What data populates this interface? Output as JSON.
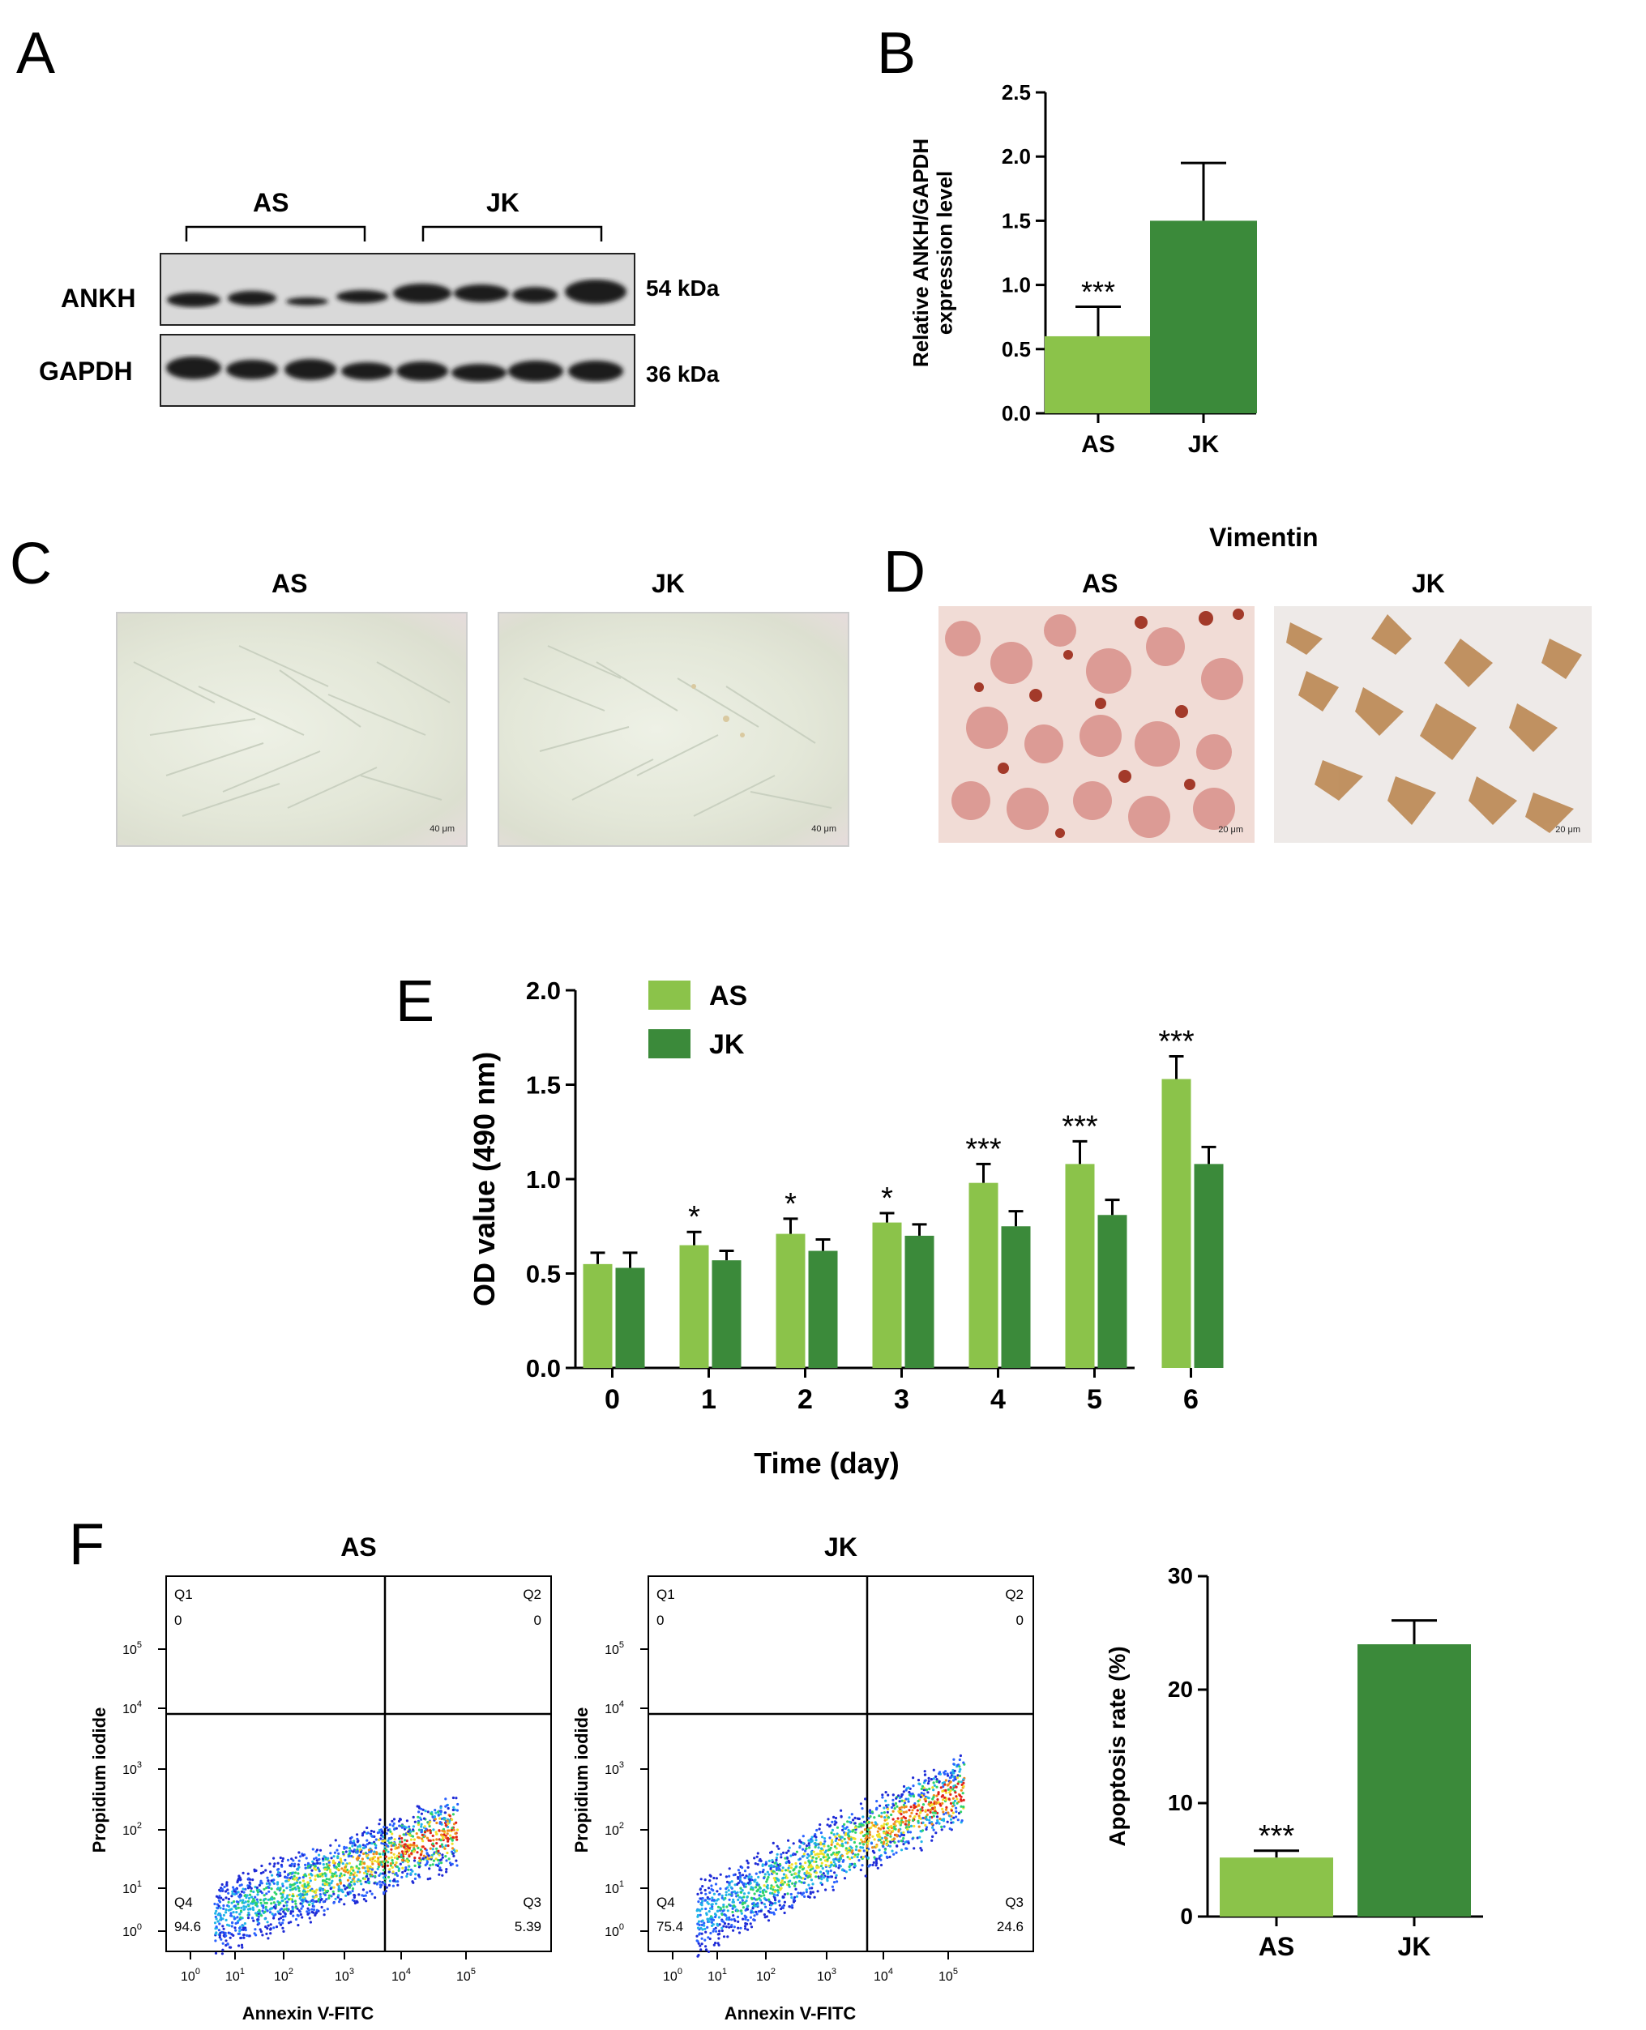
{
  "panels": {
    "A": "A",
    "B": "B",
    "C": "C",
    "D": "D",
    "E": "E",
    "F": "F"
  },
  "colors": {
    "light_green": "#8bc34a",
    "dark_green": "#3b8a3a",
    "axis": "#000000"
  },
  "panel_a": {
    "group_as": "AS",
    "group_jk": "JK",
    "rows": [
      {
        "protein": "ANKH",
        "size": "54 kDa"
      },
      {
        "protein": "GAPDH",
        "size": "36 kDa"
      }
    ]
  },
  "panel_c": {
    "label_as": "AS",
    "label_jk": "JK",
    "scale_as": "40 μm",
    "scale_jk": "40 μm"
  },
  "panel_d": {
    "title": "Vimentin",
    "label_as": "AS",
    "label_jk": "JK",
    "scale_as": "20 μm",
    "scale_jk": "20 μm"
  },
  "flow": {
    "as": {
      "title": "AS",
      "q1_label": "Q1",
      "q1": "0",
      "q2_label": "Q2",
      "q2": "0",
      "q3_label": "Q3",
      "q3": "5.39",
      "q4_label": "Q4",
      "q4": "94.6"
    },
    "jk": {
      "title": "JK",
      "q1_label": "Q1",
      "q1": "0",
      "q2_label": "Q2",
      "q2": "0",
      "q3_label": "Q3",
      "q3": "24.6",
      "q4_label": "Q4",
      "q4": "75.4"
    },
    "xlabel": "Annexin V-FITC",
    "ylabel": "Propidium iodide",
    "ticks": [
      "0",
      "1",
      "2",
      "3",
      "4",
      "5"
    ]
  },
  "chart_data": [
    {
      "id": "B",
      "type": "bar",
      "categories": [
        "AS",
        "JK"
      ],
      "values": [
        0.6,
        1.5
      ],
      "errors": [
        0.23,
        0.45
      ],
      "colors": [
        "#8bc34a",
        "#3b8a3a"
      ],
      "significance": [
        "***",
        ""
      ],
      "ylabel": "Relative ANKH/GAPDH expression level",
      "ylim": [
        0,
        2.5
      ],
      "yticks": [
        "0.0",
        "0.5",
        "1.0",
        "1.5",
        "2.0",
        "2.5"
      ]
    },
    {
      "id": "E",
      "type": "bar",
      "categories": [
        "0",
        "1",
        "2",
        "3",
        "4",
        "5",
        "6"
      ],
      "series": [
        {
          "name": "AS",
          "color": "#8bc34a",
          "values": [
            0.55,
            0.65,
            0.71,
            0.77,
            0.98,
            1.08,
            1.53
          ],
          "errors": [
            0.06,
            0.07,
            0.08,
            0.05,
            0.1,
            0.12,
            0.12
          ]
        },
        {
          "name": "JK",
          "color": "#3b8a3a",
          "values": [
            0.53,
            0.57,
            0.62,
            0.7,
            0.75,
            0.81,
            1.08
          ],
          "errors": [
            0.08,
            0.05,
            0.06,
            0.06,
            0.08,
            0.08,
            0.09
          ]
        }
      ],
      "significance": [
        "",
        "*",
        "*",
        "*",
        "***",
        "***",
        "***"
      ],
      "xlabel": "Time (day)",
      "ylabel": "OD value (490 nm)",
      "ylim": [
        0,
        2.0
      ],
      "yticks": [
        "0.0",
        "0.5",
        "1.0",
        "1.5",
        "2.0"
      ],
      "legend_position": "top-left"
    },
    {
      "id": "F-bar",
      "type": "bar",
      "categories": [
        "AS",
        "JK"
      ],
      "values": [
        5.2,
        24
      ],
      "errors": [
        0.6,
        2.1
      ],
      "colors": [
        "#8bc34a",
        "#3b8a3a"
      ],
      "significance": [
        "***",
        ""
      ],
      "ylabel": "Apoptosis rate (%)",
      "ylim": [
        0,
        30
      ],
      "yticks": [
        "0",
        "10",
        "20",
        "30"
      ]
    }
  ]
}
